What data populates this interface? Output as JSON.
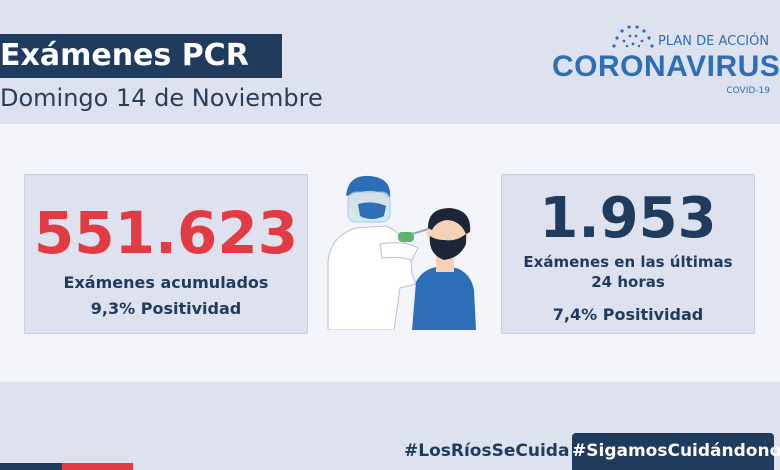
{
  "header": {
    "title": "Exámenes PCR",
    "date": "Domingo 14 de Noviembre"
  },
  "logo": {
    "plan": "PLAN DE ACCIÓN",
    "name": "CORONAVIRUS",
    "covid": "COVID-19"
  },
  "stats": {
    "cumulative": {
      "value": "551.623",
      "label": "Exámenes acumulados",
      "positivity": "9,3% Positividad"
    },
    "last24": {
      "value": "1.953",
      "label_line1": "Exámenes en las últimas",
      "label_line2": "24 horas",
      "positivity": "7,4% Positividad"
    }
  },
  "hashtags": {
    "first": "#LosRíosSeCuida",
    "second": "#SigamosCuidándonos"
  },
  "colors": {
    "navy": "#1f3b5e",
    "red": "#e23b43",
    "logo_blue": "#2d6fb6",
    "background": "#dde2ee"
  },
  "icons": {
    "illustration": "pcr-swab-test-illustration"
  }
}
